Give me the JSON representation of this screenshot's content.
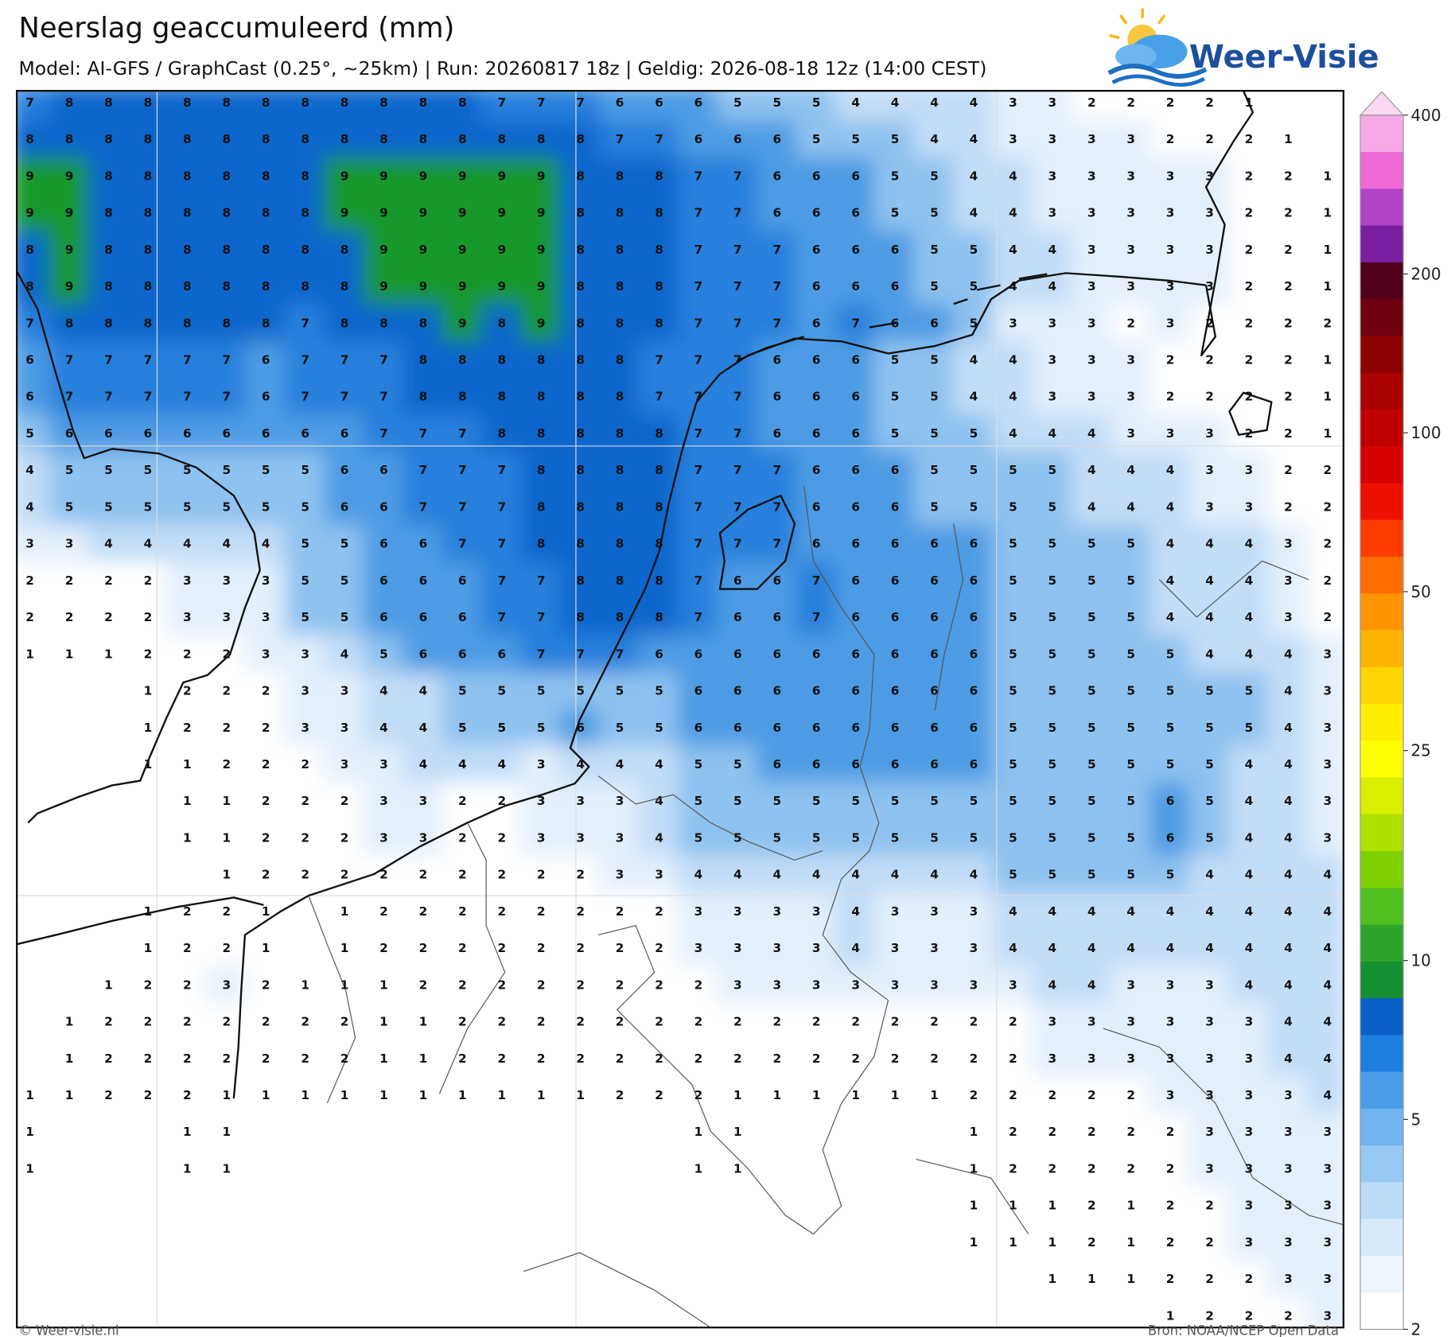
{
  "header": {
    "title": "Neerslag geaccumuleerd (mm)",
    "subtitle": "Model: AI-GFS / GraphCast (0.25°, ~25km)  |  Run: 20260817 18z  |  Geldig: 2026-08-18 12z (14:00 CEST)"
  },
  "logo": {
    "text": "Weer-Visie"
  },
  "map": {
    "grid": [
      [
        7,
        8,
        8,
        8,
        8,
        8,
        8,
        8,
        8,
        8,
        8,
        8,
        7,
        7,
        7,
        6,
        6,
        6,
        5,
        5,
        5,
        4,
        4,
        4,
        4,
        3,
        3,
        2,
        2,
        2,
        2,
        1,
        null,
        null
      ],
      [
        8,
        8,
        8,
        8,
        8,
        8,
        8,
        8,
        8,
        8,
        8,
        8,
        8,
        8,
        8,
        7,
        7,
        6,
        6,
        6,
        5,
        5,
        5,
        4,
        4,
        3,
        3,
        3,
        3,
        2,
        2,
        2,
        1,
        null
      ],
      [
        9,
        9,
        8,
        8,
        8,
        8,
        8,
        8,
        9,
        9,
        9,
        9,
        9,
        9,
        8,
        8,
        8,
        7,
        7,
        6,
        6,
        6,
        5,
        5,
        4,
        4,
        3,
        3,
        3,
        3,
        3,
        2,
        2,
        1
      ],
      [
        9,
        9,
        8,
        8,
        8,
        8,
        8,
        8,
        9,
        9,
        9,
        9,
        9,
        9,
        8,
        8,
        8,
        7,
        7,
        6,
        6,
        6,
        5,
        5,
        4,
        4,
        3,
        3,
        3,
        3,
        3,
        2,
        2,
        1
      ],
      [
        8,
        9,
        8,
        8,
        8,
        8,
        8,
        8,
        8,
        9,
        9,
        9,
        9,
        9,
        8,
        8,
        8,
        7,
        7,
        7,
        6,
        6,
        6,
        5,
        5,
        4,
        4,
        3,
        3,
        3,
        3,
        2,
        2,
        1
      ],
      [
        8,
        9,
        8,
        8,
        8,
        8,
        8,
        8,
        8,
        9,
        9,
        9,
        9,
        9,
        8,
        8,
        8,
        7,
        7,
        7,
        6,
        6,
        6,
        5,
        5,
        4,
        4,
        3,
        3,
        3,
        3,
        2,
        2,
        1
      ],
      [
        7,
        8,
        8,
        8,
        8,
        8,
        8,
        7,
        8,
        8,
        8,
        9,
        8,
        9,
        8,
        8,
        8,
        7,
        7,
        7,
        6,
        7,
        6,
        6,
        5,
        3,
        3,
        3,
        2,
        3,
        2,
        2,
        2,
        2
      ],
      [
        6,
        7,
        7,
        7,
        7,
        7,
        6,
        7,
        7,
        7,
        8,
        8,
        8,
        8,
        8,
        8,
        7,
        7,
        7,
        6,
        6,
        6,
        5,
        5,
        4,
        4,
        3,
        3,
        3,
        2,
        2,
        2,
        2,
        1
      ],
      [
        6,
        7,
        7,
        7,
        7,
        7,
        6,
        7,
        7,
        7,
        8,
        8,
        8,
        8,
        8,
        8,
        7,
        7,
        7,
        6,
        6,
        6,
        5,
        5,
        4,
        4,
        3,
        3,
        3,
        2,
        2,
        2,
        2,
        1
      ],
      [
        5,
        6,
        6,
        6,
        6,
        6,
        6,
        6,
        6,
        7,
        7,
        7,
        8,
        8,
        8,
        8,
        8,
        7,
        7,
        6,
        6,
        6,
        5,
        5,
        5,
        4,
        4,
        4,
        3,
        3,
        3,
        2,
        2,
        1
      ],
      [
        4,
        5,
        5,
        5,
        5,
        5,
        5,
        5,
        6,
        6,
        7,
        7,
        7,
        8,
        8,
        8,
        8,
        7,
        7,
        7,
        6,
        6,
        6,
        5,
        5,
        5,
        5,
        4,
        4,
        4,
        3,
        3,
        2,
        2
      ],
      [
        4,
        5,
        5,
        5,
        5,
        5,
        5,
        5,
        6,
        6,
        7,
        7,
        7,
        8,
        8,
        8,
        8,
        7,
        7,
        7,
        6,
        6,
        6,
        5,
        5,
        5,
        5,
        4,
        4,
        4,
        3,
        3,
        2,
        2
      ],
      [
        3,
        3,
        4,
        4,
        4,
        4,
        4,
        5,
        5,
        6,
        6,
        7,
        7,
        8,
        8,
        8,
        8,
        7,
        7,
        7,
        6,
        6,
        6,
        6,
        6,
        5,
        5,
        5,
        5,
        4,
        4,
        4,
        3,
        2
      ],
      [
        2,
        2,
        2,
        2,
        3,
        3,
        3,
        5,
        5,
        6,
        6,
        6,
        7,
        7,
        8,
        8,
        8,
        7,
        6,
        6,
        7,
        6,
        6,
        6,
        6,
        5,
        5,
        5,
        5,
        4,
        4,
        4,
        3,
        2
      ],
      [
        2,
        2,
        2,
        2,
        3,
        3,
        3,
        5,
        5,
        6,
        6,
        6,
        7,
        7,
        8,
        8,
        8,
        7,
        6,
        6,
        7,
        6,
        6,
        6,
        6,
        5,
        5,
        5,
        5,
        4,
        4,
        4,
        3,
        2
      ],
      [
        1,
        1,
        1,
        2,
        2,
        2,
        3,
        3,
        4,
        5,
        6,
        6,
        6,
        7,
        7,
        7,
        6,
        6,
        6,
        6,
        6,
        6,
        6,
        6,
        6,
        5,
        5,
        5,
        5,
        5,
        4,
        4,
        4,
        3
      ],
      [
        null,
        null,
        null,
        1,
        2,
        2,
        2,
        3,
        3,
        4,
        4,
        5,
        5,
        5,
        5,
        5,
        5,
        6,
        6,
        6,
        6,
        6,
        6,
        6,
        6,
        5,
        5,
        5,
        5,
        5,
        5,
        5,
        4,
        3
      ],
      [
        null,
        null,
        null,
        1,
        2,
        2,
        2,
        3,
        3,
        4,
        4,
        5,
        5,
        5,
        6,
        5,
        5,
        6,
        6,
        6,
        6,
        6,
        6,
        6,
        6,
        5,
        5,
        5,
        5,
        5,
        5,
        5,
        4,
        3
      ],
      [
        null,
        null,
        null,
        1,
        1,
        2,
        2,
        2,
        3,
        3,
        4,
        4,
        4,
        3,
        4,
        4,
        4,
        5,
        5,
        6,
        6,
        6,
        6,
        6,
        6,
        5,
        5,
        5,
        5,
        5,
        5,
        4,
        4,
        3
      ],
      [
        null,
        null,
        null,
        null,
        1,
        1,
        2,
        2,
        2,
        3,
        3,
        2,
        2,
        3,
        3,
        3,
        4,
        5,
        5,
        5,
        5,
        5,
        5,
        5,
        5,
        5,
        5,
        5,
        5,
        6,
        5,
        4,
        4,
        3
      ],
      [
        null,
        null,
        null,
        null,
        1,
        1,
        2,
        2,
        2,
        3,
        3,
        2,
        2,
        3,
        3,
        3,
        4,
        5,
        5,
        5,
        5,
        5,
        5,
        5,
        5,
        5,
        5,
        5,
        5,
        6,
        5,
        4,
        4,
        3
      ],
      [
        null,
        null,
        null,
        null,
        null,
        1,
        2,
        2,
        2,
        2,
        2,
        2,
        2,
        2,
        2,
        3,
        3,
        4,
        4,
        4,
        4,
        4,
        4,
        4,
        4,
        5,
        5,
        5,
        5,
        5,
        4,
        4,
        4,
        4
      ],
      [
        null,
        null,
        null,
        1,
        2,
        2,
        1,
        null,
        1,
        2,
        2,
        2,
        2,
        2,
        2,
        2,
        2,
        3,
        3,
        3,
        3,
        4,
        3,
        3,
        3,
        4,
        4,
        4,
        4,
        4,
        4,
        4,
        4,
        4
      ],
      [
        null,
        null,
        null,
        1,
        2,
        2,
        1,
        null,
        1,
        2,
        2,
        2,
        2,
        2,
        2,
        2,
        2,
        3,
        3,
        3,
        3,
        4,
        3,
        3,
        3,
        4,
        4,
        4,
        4,
        4,
        4,
        4,
        4,
        4
      ],
      [
        null,
        null,
        1,
        2,
        2,
        3,
        2,
        1,
        1,
        1,
        2,
        2,
        2,
        2,
        2,
        2,
        2,
        2,
        3,
        3,
        3,
        3,
        3,
        3,
        3,
        3,
        4,
        4,
        3,
        3,
        3,
        4,
        4,
        4
      ],
      [
        null,
        1,
        2,
        2,
        2,
        2,
        2,
        2,
        2,
        1,
        1,
        2,
        2,
        2,
        2,
        2,
        2,
        2,
        2,
        2,
        2,
        2,
        2,
        2,
        2,
        2,
        3,
        3,
        3,
        3,
        3,
        3,
        4,
        4
      ],
      [
        null,
        1,
        2,
        2,
        2,
        2,
        2,
        2,
        2,
        1,
        1,
        2,
        2,
        2,
        2,
        2,
        2,
        2,
        2,
        2,
        2,
        2,
        2,
        2,
        2,
        2,
        3,
        3,
        3,
        3,
        3,
        3,
        4,
        4
      ],
      [
        1,
        1,
        2,
        2,
        2,
        1,
        1,
        1,
        1,
        1,
        1,
        1,
        1,
        1,
        1,
        2,
        2,
        2,
        1,
        1,
        1,
        1,
        1,
        1,
        2,
        2,
        2,
        2,
        2,
        3,
        3,
        3,
        3,
        4
      ],
      [
        1,
        null,
        null,
        null,
        1,
        1,
        null,
        null,
        null,
        null,
        null,
        null,
        null,
        null,
        null,
        null,
        null,
        1,
        1,
        null,
        null,
        null,
        null,
        null,
        1,
        2,
        2,
        2,
        2,
        2,
        3,
        3,
        3,
        3
      ],
      [
        1,
        null,
        null,
        null,
        1,
        1,
        null,
        null,
        null,
        null,
        null,
        null,
        null,
        null,
        null,
        null,
        null,
        1,
        1,
        null,
        null,
        null,
        null,
        null,
        1,
        2,
        2,
        2,
        2,
        2,
        3,
        3,
        3,
        3
      ],
      [
        null,
        null,
        null,
        null,
        null,
        null,
        null,
        null,
        null,
        null,
        null,
        null,
        null,
        null,
        null,
        null,
        null,
        null,
        null,
        null,
        null,
        null,
        null,
        null,
        1,
        1,
        1,
        2,
        1,
        2,
        2,
        3,
        3,
        3
      ],
      [
        null,
        null,
        null,
        null,
        null,
        null,
        null,
        null,
        null,
        null,
        null,
        null,
        null,
        null,
        null,
        null,
        null,
        null,
        null,
        null,
        null,
        null,
        null,
        null,
        1,
        1,
        1,
        2,
        1,
        2,
        2,
        3,
        3,
        3
      ],
      [
        null,
        null,
        null,
        null,
        null,
        null,
        null,
        null,
        null,
        null,
        null,
        null,
        null,
        null,
        null,
        null,
        null,
        null,
        null,
        null,
        null,
        null,
        null,
        null,
        null,
        null,
        1,
        1,
        1,
        2,
        2,
        2,
        3,
        3
      ],
      [
        null,
        null,
        null,
        null,
        null,
        null,
        null,
        null,
        null,
        null,
        null,
        null,
        null,
        null,
        null,
        null,
        null,
        null,
        null,
        null,
        null,
        null,
        null,
        null,
        null,
        null,
        null,
        null,
        null,
        1,
        2,
        2,
        2,
        3
      ]
    ]
  },
  "colorbar": {
    "ticks": [
      400,
      200,
      100,
      50,
      25,
      10,
      5,
      2
    ]
  },
  "footer": {
    "left": "© Weer-visie.nl",
    "right": "Bron: NOAA/NCEP Open Data"
  }
}
